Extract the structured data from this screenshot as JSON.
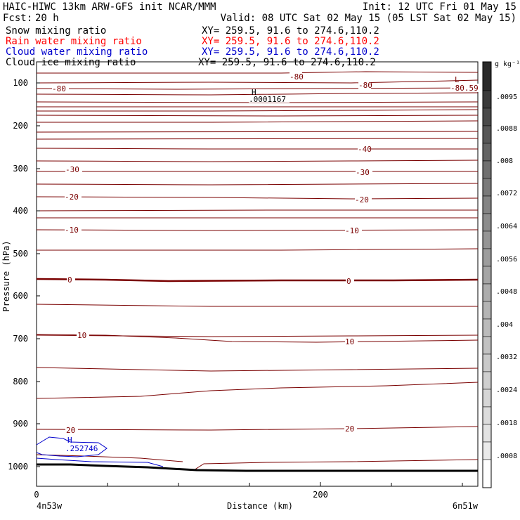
{
  "header": {
    "model_line": "HAIC-HIWC 13km ARW-GFS init   NCAR/MMM",
    "init_line": "Init: 12 UTC Fri 01 May 15",
    "fcst_label": "Fcst:",
    "fcst_value": "20 h",
    "valid_line": "Valid: 08 UTC Sat 02 May 15 (05 LST Sat 02 May 15)"
  },
  "fields": [
    {
      "name": "Snow mixing ratio",
      "xy": "XY= 259.5, 91.6 to 274.6,110.2",
      "color": "#000000"
    },
    {
      "name": "Rain water mixing ratio",
      "xy": "XY= 259.5, 91.6 to 274.6,110.2",
      "color": "#ff0000"
    },
    {
      "name": "Cloud water mixing ratio",
      "xy": "XY= 259.5, 91.6 to 274.6,110.2",
      "color": "#0000cc"
    },
    {
      "name": "Cloud ice mixing ratio",
      "xy": "XY= 259.5, 91.6 to 274.6,110.2",
      "color": "#000000"
    }
  ],
  "colors": {
    "temperature_contour": "#7a0000",
    "cloud_water_contour": "#0000cc",
    "terrain": "#000000"
  },
  "y_axis": {
    "label": "Pressure (hPa)",
    "ticks": [
      "100",
      "200",
      "300",
      "400",
      "500",
      "600",
      "700",
      "800",
      "900",
      "1000"
    ]
  },
  "x_axis": {
    "label": "Distance (km)",
    "ticks": [
      "0",
      "200"
    ],
    "left_end": "4n53w",
    "right_end": "6n51w"
  },
  "colorbar": {
    "units_label": "g kg⁻¹",
    "labels": [
      ".0095",
      ".0088",
      ".008",
      ".0072",
      ".0064",
      ".0056",
      ".0048",
      ".004",
      ".0032",
      ".0024",
      ".0018",
      ".0008"
    ]
  },
  "contour_labels": [
    {
      "text": "-80"
    },
    {
      "text": "-80"
    },
    {
      "text": "-80"
    },
    {
      "text": "L"
    },
    {
      "text": "-80.59"
    },
    {
      "text": "H"
    },
    {
      "text": ".0001167"
    },
    {
      "text": "-40"
    },
    {
      "text": "-30"
    },
    {
      "text": "-30"
    },
    {
      "text": "-20"
    },
    {
      "text": "-20"
    },
    {
      "text": "-10"
    },
    {
      "text": "-10"
    },
    {
      "text": "0"
    },
    {
      "text": "0"
    },
    {
      "text": "10"
    },
    {
      "text": "10"
    },
    {
      "text": "20"
    },
    {
      "text": "20"
    },
    {
      "text": "H"
    },
    {
      "text": ".252746"
    }
  ]
}
